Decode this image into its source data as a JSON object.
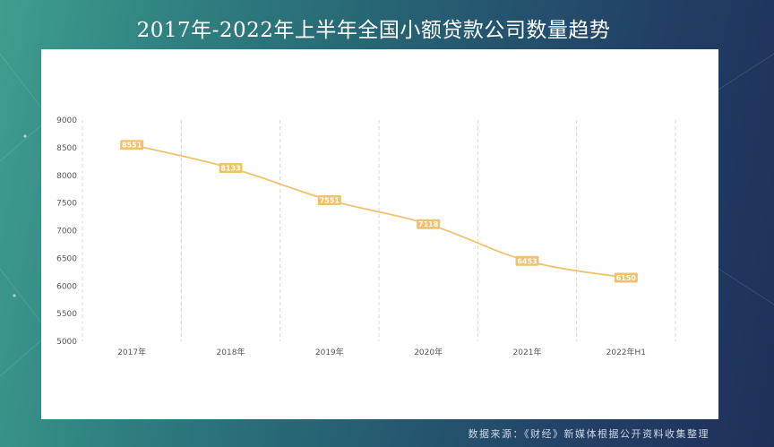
{
  "page": {
    "title": "2017年-2022年上半年全国小额贷款公司数量趋势",
    "source": "数据来源：《财经》新媒体根据公开资料收集整理"
  },
  "colors": {
    "line": "#f0c270",
    "label_bg": "#f0c270",
    "label_text": "#ffffff",
    "grid": "#d8d8d8"
  },
  "chart_data": {
    "type": "line",
    "title": "2017年-2022年上半年全国小额贷款公司数量趋势",
    "xlabel": "",
    "ylabel": "",
    "categories": [
      "2017年",
      "2018年",
      "2019年",
      "2020年",
      "2021年",
      "2022年H1"
    ],
    "series": [
      {
        "values": [
          8551,
          8133,
          7551,
          7118,
          6453,
          6150
        ]
      }
    ],
    "data_labels": [
      "8551",
      "8133",
      "7551",
      "7118",
      "6453",
      "6150"
    ],
    "ylim": [
      5000,
      9000
    ],
    "yticks": [
      5000,
      5500,
      6000,
      6500,
      7000,
      7500,
      8000,
      8500,
      9000
    ],
    "grid": "vertical-dashed",
    "legend": "none"
  }
}
